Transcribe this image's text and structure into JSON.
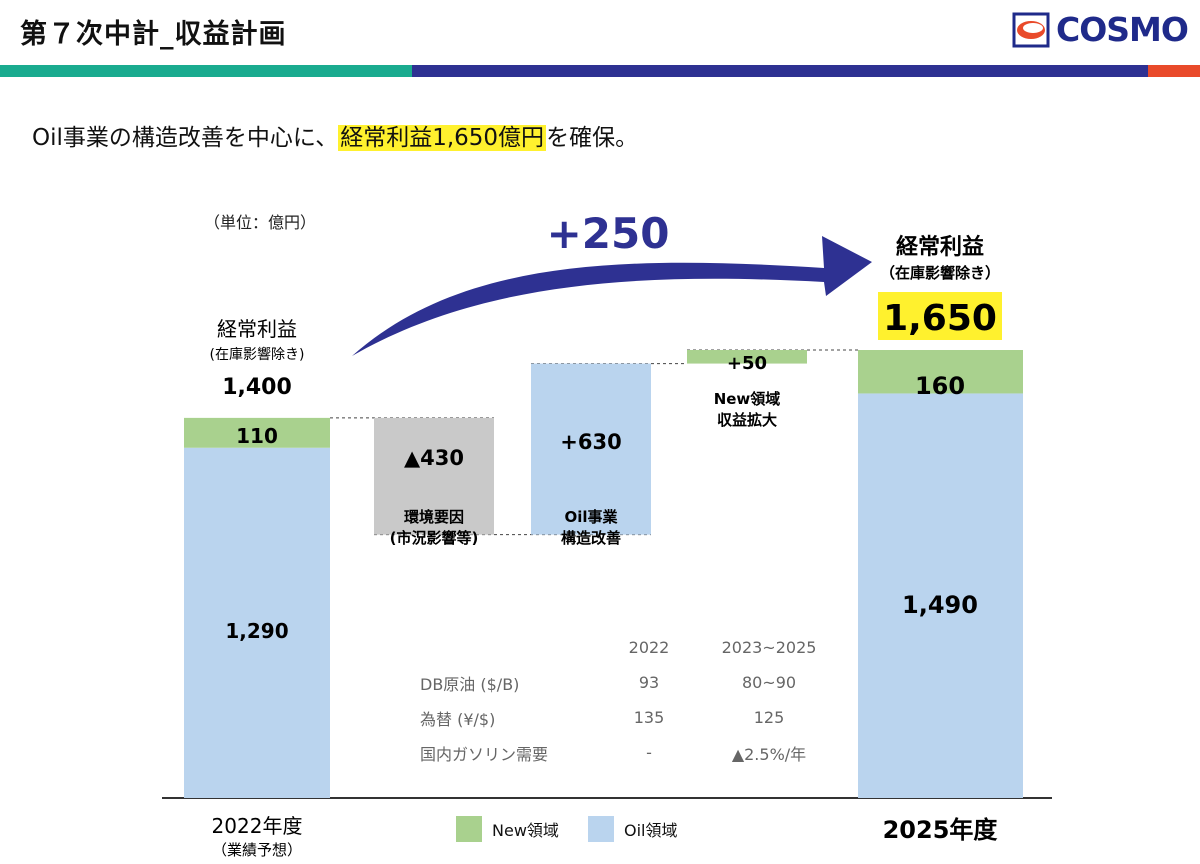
{
  "header": {
    "title": "第７次中計_収益計画"
  },
  "logo": {
    "text": "COSMO"
  },
  "colors": {
    "teal": "#1aab8f",
    "navy": "#2e3192",
    "red": "#e94a2a",
    "oil": "#bad4ee",
    "new": "#a9d18e",
    "env": "#c9c9c9",
    "highlight": "#fff12e"
  },
  "headline": {
    "prefix": "Oil事業の構造改善を中心に、",
    "highlight": "経常利益1,650億円",
    "suffix": "を確保。"
  },
  "chart_data": {
    "type": "bar",
    "unit_label": "（単位：億円）",
    "growth_label": "+250",
    "ylim": [
      0,
      1760
    ],
    "start": {
      "title": "経常利益",
      "subtitle": "(在庫影響除き)",
      "total_label": "1,400",
      "xlabel": "2022年度",
      "xsub": "（業績予想）",
      "oil": 1290,
      "oil_label": "1,290",
      "new": 110,
      "new_label": "110"
    },
    "steps": [
      {
        "base": 970,
        "value": 430,
        "label": "▲430",
        "name1": "環境要因",
        "name2": "(市況影響等)"
      },
      {
        "base": 970,
        "value": 630,
        "label": "+630",
        "name1": "Oil事業",
        "name2": "構造改善"
      },
      {
        "base": 1600,
        "value": 50,
        "label": "+50",
        "name1": "New領域",
        "name2": "収益拡大"
      }
    ],
    "end": {
      "title": "経常利益",
      "subtitle": "（在庫影響除き）",
      "total_label": "1,650",
      "xlabel": "2025年度",
      "oil": 1490,
      "oil_label": "1,490",
      "new": 160,
      "new_label": "160"
    },
    "legend": [
      "New領域",
      "Oil領域"
    ]
  },
  "assumptions": {
    "headers": [
      "2022",
      "2023~2025"
    ],
    "rows": [
      {
        "label": "DB原油 ($/B)",
        "v2022": "93",
        "v2025": "80~90"
      },
      {
        "label": "為替 (¥/$)",
        "v2022": "135",
        "v2025": "125"
      },
      {
        "label": "国内ガソリン需要",
        "v2022": "-",
        "v2025": "▲2.5%/年"
      }
    ]
  }
}
